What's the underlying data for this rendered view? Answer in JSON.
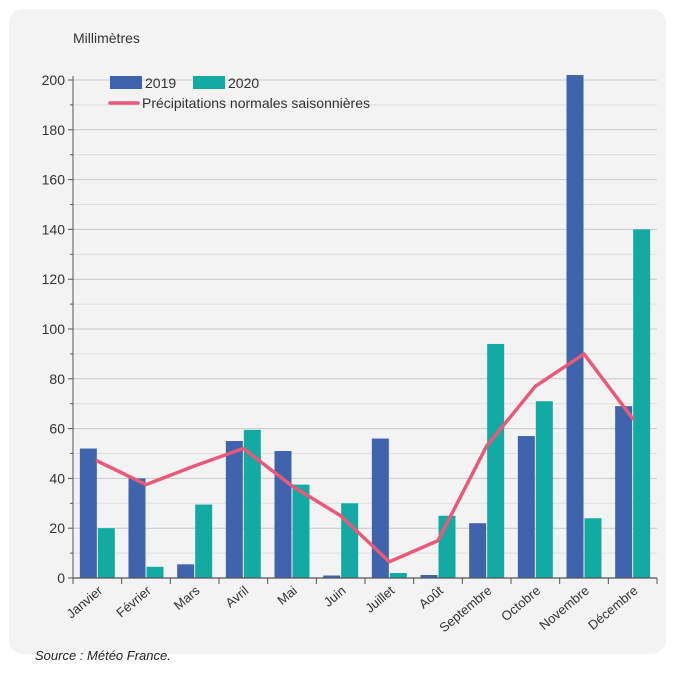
{
  "source": "Source : Météo France.",
  "chart_data": {
    "type": "bar",
    "ylabel": "Millimètres",
    "ylim": [
      0,
      200
    ],
    "yticks": [
      0,
      20,
      40,
      60,
      80,
      100,
      120,
      140,
      160,
      180,
      200
    ],
    "grid": true,
    "legend_position": "top-left",
    "categories": [
      "Janvier",
      "Février",
      "Mars",
      "Avril",
      "Mai",
      "Juin",
      "Juillet",
      "Août",
      "Septembre",
      "Octobre",
      "Novembre",
      "Décembre"
    ],
    "series": [
      {
        "name": "2019",
        "type": "bar",
        "color": "#3f63ac",
        "values": [
          52,
          40,
          5.5,
          55,
          51,
          1,
          56,
          1.2,
          22,
          57,
          202,
          69
        ]
      },
      {
        "name": "2020",
        "type": "bar",
        "color": "#14aaa4",
        "values": [
          20,
          4.5,
          29.5,
          59.5,
          37.5,
          30,
          2,
          25,
          94,
          71,
          24,
          140
        ]
      },
      {
        "name": "Précipitations normales saisonnières",
        "type": "line",
        "color": "#e85a7a",
        "values": [
          47,
          37.5,
          45,
          52,
          37,
          25,
          6.5,
          15,
          53,
          77,
          90,
          64
        ]
      }
    ]
  }
}
